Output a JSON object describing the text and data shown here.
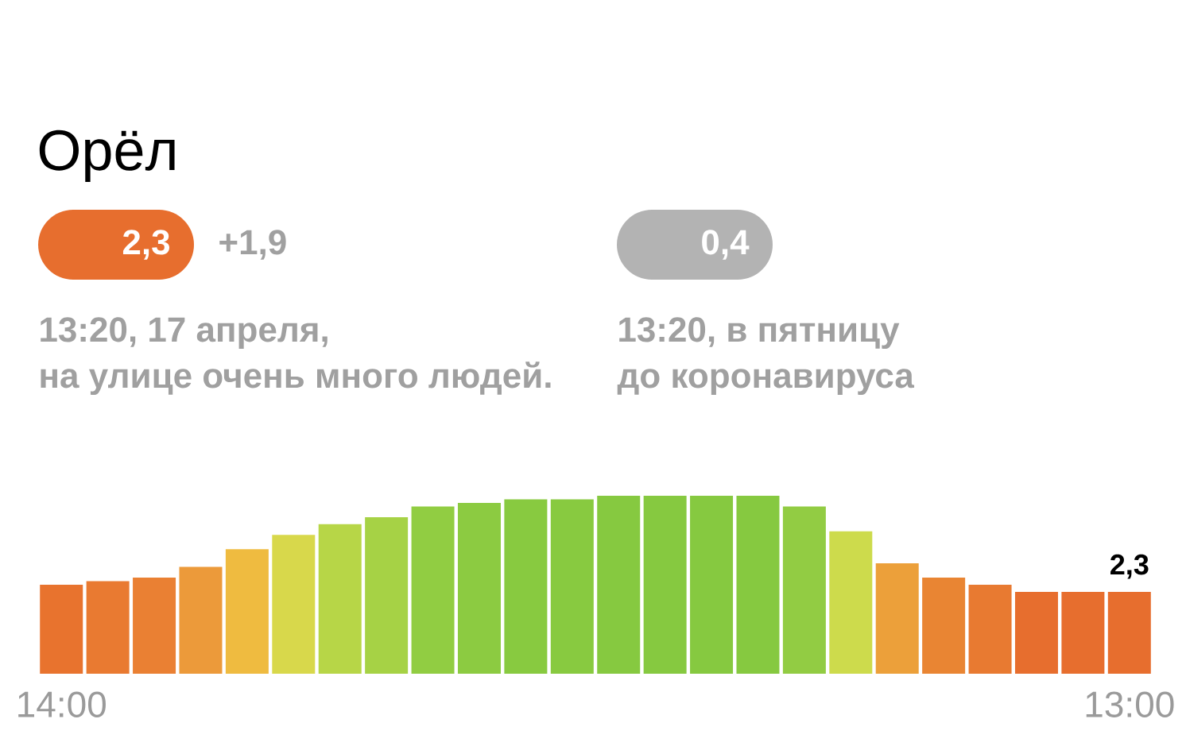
{
  "chart_data": {
    "type": "bar",
    "title": "Орёл",
    "annotations": [
      "2,3",
      "+1,9",
      "0,4",
      "13:20, 17 апреля,",
      "на улице очень много людей.",
      "13:20, в пятницу",
      "до коронавируса"
    ],
    "categories": [
      "14:00",
      null,
      null,
      null,
      null,
      null,
      null,
      null,
      null,
      null,
      null,
      null,
      null,
      null,
      null,
      null,
      null,
      null,
      null,
      null,
      null,
      null,
      null,
      "13:00"
    ],
    "values": [
      2.5,
      2.6,
      2.7,
      3.0,
      3.5,
      3.9,
      4.2,
      4.4,
      4.7,
      4.8,
      4.9,
      4.9,
      5.0,
      5.0,
      5.0,
      5.0,
      4.7,
      4.0,
      3.1,
      2.7,
      2.5,
      2.3,
      2.3,
      2.3
    ],
    "colors": [
      "#e8732e",
      "#e97a31",
      "#ea8033",
      "#ec9a3a",
      "#efbb40",
      "#d8d84b",
      "#b7d647",
      "#a6d245",
      "#91cd42",
      "#8ccb41",
      "#88ca40",
      "#88ca40",
      "#86c940",
      "#86c940",
      "#86c940",
      "#86c940",
      "#92cc43",
      "#cddb4c",
      "#eca03a",
      "#e98533",
      "#e87a31",
      "#e76e2e",
      "#e76e2e",
      "#e76e2e"
    ],
    "ylim": [
      0,
      5
    ],
    "value_labels": [
      null,
      null,
      null,
      null,
      null,
      null,
      null,
      null,
      null,
      null,
      null,
      null,
      null,
      null,
      null,
      null,
      null,
      null,
      null,
      null,
      null,
      null,
      null,
      "2,3"
    ]
  }
}
